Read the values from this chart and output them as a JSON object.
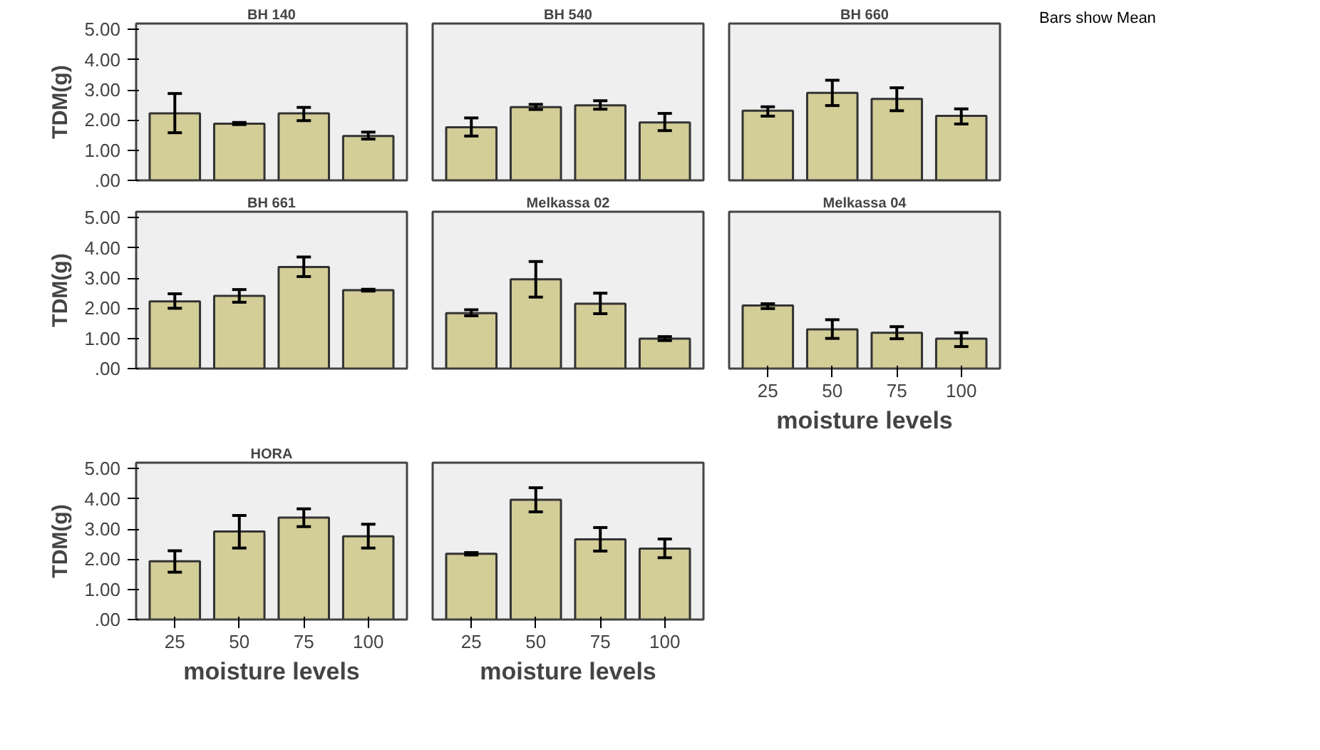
{
  "chart_data": [
    {
      "type": "bar",
      "title": "BH 140",
      "ylabel": "TDM(g)",
      "categories": [
        "25",
        "50",
        "75",
        "100"
      ],
      "values": [
        2.22,
        1.88,
        2.22,
        1.47
      ],
      "errors": [
        [
          1.58,
          2.88
        ],
        [
          1.85,
          1.92
        ],
        [
          1.98,
          2.42
        ],
        [
          1.37,
          1.6
        ]
      ],
      "color": "#d3cd98",
      "ylim": [
        0,
        5.2
      ],
      "yticks": [
        {
          "value": 0,
          "label": ".00"
        },
        {
          "value": 1,
          "label": "1.00"
        },
        {
          "value": 2,
          "label": "2.00"
        },
        {
          "value": 3,
          "label": "3.00"
        },
        {
          "value": 4,
          "label": "4.00"
        },
        {
          "value": 5,
          "label": "5.00"
        }
      ],
      "tick_labels": "y",
      "grid": false,
      "legend": false
    },
    {
      "type": "bar",
      "title": "BH 540",
      "categories": [
        "25",
        "50",
        "75",
        "100"
      ],
      "values": [
        1.76,
        2.43,
        2.49,
        1.92
      ],
      "errors": [
        [
          1.47,
          2.07
        ],
        [
          2.35,
          2.52
        ],
        [
          2.36,
          2.64
        ],
        [
          1.65,
          2.22
        ]
      ],
      "color": "#d3cd98",
      "ylim": [
        0,
        5.2
      ],
      "tick_labels": false,
      "grid": false,
      "legend": false
    },
    {
      "type": "bar",
      "title": "BH 660",
      "annotations": [
        "Bars show Mean"
      ],
      "categories": [
        "25",
        "50",
        "75",
        "100"
      ],
      "values": [
        2.31,
        2.9,
        2.7,
        2.14
      ],
      "errors": [
        [
          2.13,
          2.44
        ],
        [
          2.48,
          3.32
        ],
        [
          2.31,
          3.07
        ],
        [
          1.87,
          2.37
        ]
      ],
      "color": "#d3cd98",
      "ylim": [
        0,
        5.2
      ],
      "tick_labels": false,
      "grid": false,
      "legend": false
    },
    {
      "type": "bar",
      "title": "BH 661",
      "ylabel": "TDM(g)",
      "categories": [
        "25",
        "50",
        "75",
        "100"
      ],
      "values": [
        2.23,
        2.41,
        3.37,
        2.6
      ],
      "errors": [
        [
          2.0,
          2.48
        ],
        [
          2.2,
          2.62
        ],
        [
          3.05,
          3.7
        ],
        [
          2.57,
          2.63
        ]
      ],
      "color": "#d3cd98",
      "ylim": [
        0,
        5.2
      ],
      "yticks": [
        {
          "value": 0,
          "label": ".00"
        },
        {
          "value": 1,
          "label": "1.00"
        },
        {
          "value": 2,
          "label": "2.00"
        },
        {
          "value": 3,
          "label": "3.00"
        },
        {
          "value": 4,
          "label": "4.00"
        },
        {
          "value": 5,
          "label": "5.00"
        }
      ],
      "tick_labels": "y",
      "grid": false,
      "legend": false
    },
    {
      "type": "bar",
      "title": "Melkassa 02",
      "categories": [
        "25",
        "50",
        "75",
        "100"
      ],
      "values": [
        1.84,
        2.96,
        2.15,
        0.99
      ],
      "errors": [
        [
          1.75,
          1.95
        ],
        [
          2.37,
          3.55
        ],
        [
          1.82,
          2.5
        ],
        [
          0.93,
          1.06
        ]
      ],
      "color": "#d3cd98",
      "ylim": [
        0,
        5.2
      ],
      "tick_labels": false,
      "grid": false,
      "legend": false
    },
    {
      "type": "bar",
      "title": "Melkassa 04",
      "xlabel": "moisture levels",
      "categories": [
        "25",
        "50",
        "75",
        "100"
      ],
      "values": [
        2.09,
        1.3,
        1.19,
        0.99
      ],
      "errors": [
        [
          1.99,
          2.15
        ],
        [
          1.0,
          1.62
        ],
        [
          0.99,
          1.39
        ],
        [
          0.73,
          1.19
        ]
      ],
      "color": "#d3cd98",
      "ylim": [
        0,
        5.2
      ],
      "tick_labels": "x",
      "grid": false,
      "legend": false
    },
    {
      "type": "bar",
      "title": "HORA",
      "xlabel": "moisture levels",
      "ylabel": "TDM(g)",
      "categories": [
        "25",
        "50",
        "75",
        "100"
      ],
      "values": [
        1.93,
        2.92,
        3.38,
        2.76
      ],
      "errors": [
        [
          1.57,
          2.28
        ],
        [
          2.37,
          3.45
        ],
        [
          3.08,
          3.67
        ],
        [
          2.37,
          3.16
        ]
      ],
      "color": "#d3cd98",
      "ylim": [
        0,
        5.2
      ],
      "yticks": [
        {
          "value": 0,
          "label": ".00"
        },
        {
          "value": 1,
          "label": "1.00"
        },
        {
          "value": 2,
          "label": "2.00"
        },
        {
          "value": 3,
          "label": "3.00"
        },
        {
          "value": 4,
          "label": "4.00"
        },
        {
          "value": 5,
          "label": "5.00"
        }
      ],
      "grid": false,
      "legend": false
    },
    {
      "type": "bar",
      "xlabel": "moisture levels",
      "categories": [
        "25",
        "50",
        "75",
        "100"
      ],
      "values": [
        2.18,
        3.97,
        2.66,
        2.35
      ],
      "errors": [
        [
          2.14,
          2.22
        ],
        [
          3.57,
          4.37
        ],
        [
          2.27,
          3.05
        ],
        [
          2.05,
          2.67
        ]
      ],
      "color": "#d3cd98",
      "ylim": [
        0,
        5.2
      ],
      "tick_labels": "x",
      "grid": false,
      "legend": false
    }
  ]
}
